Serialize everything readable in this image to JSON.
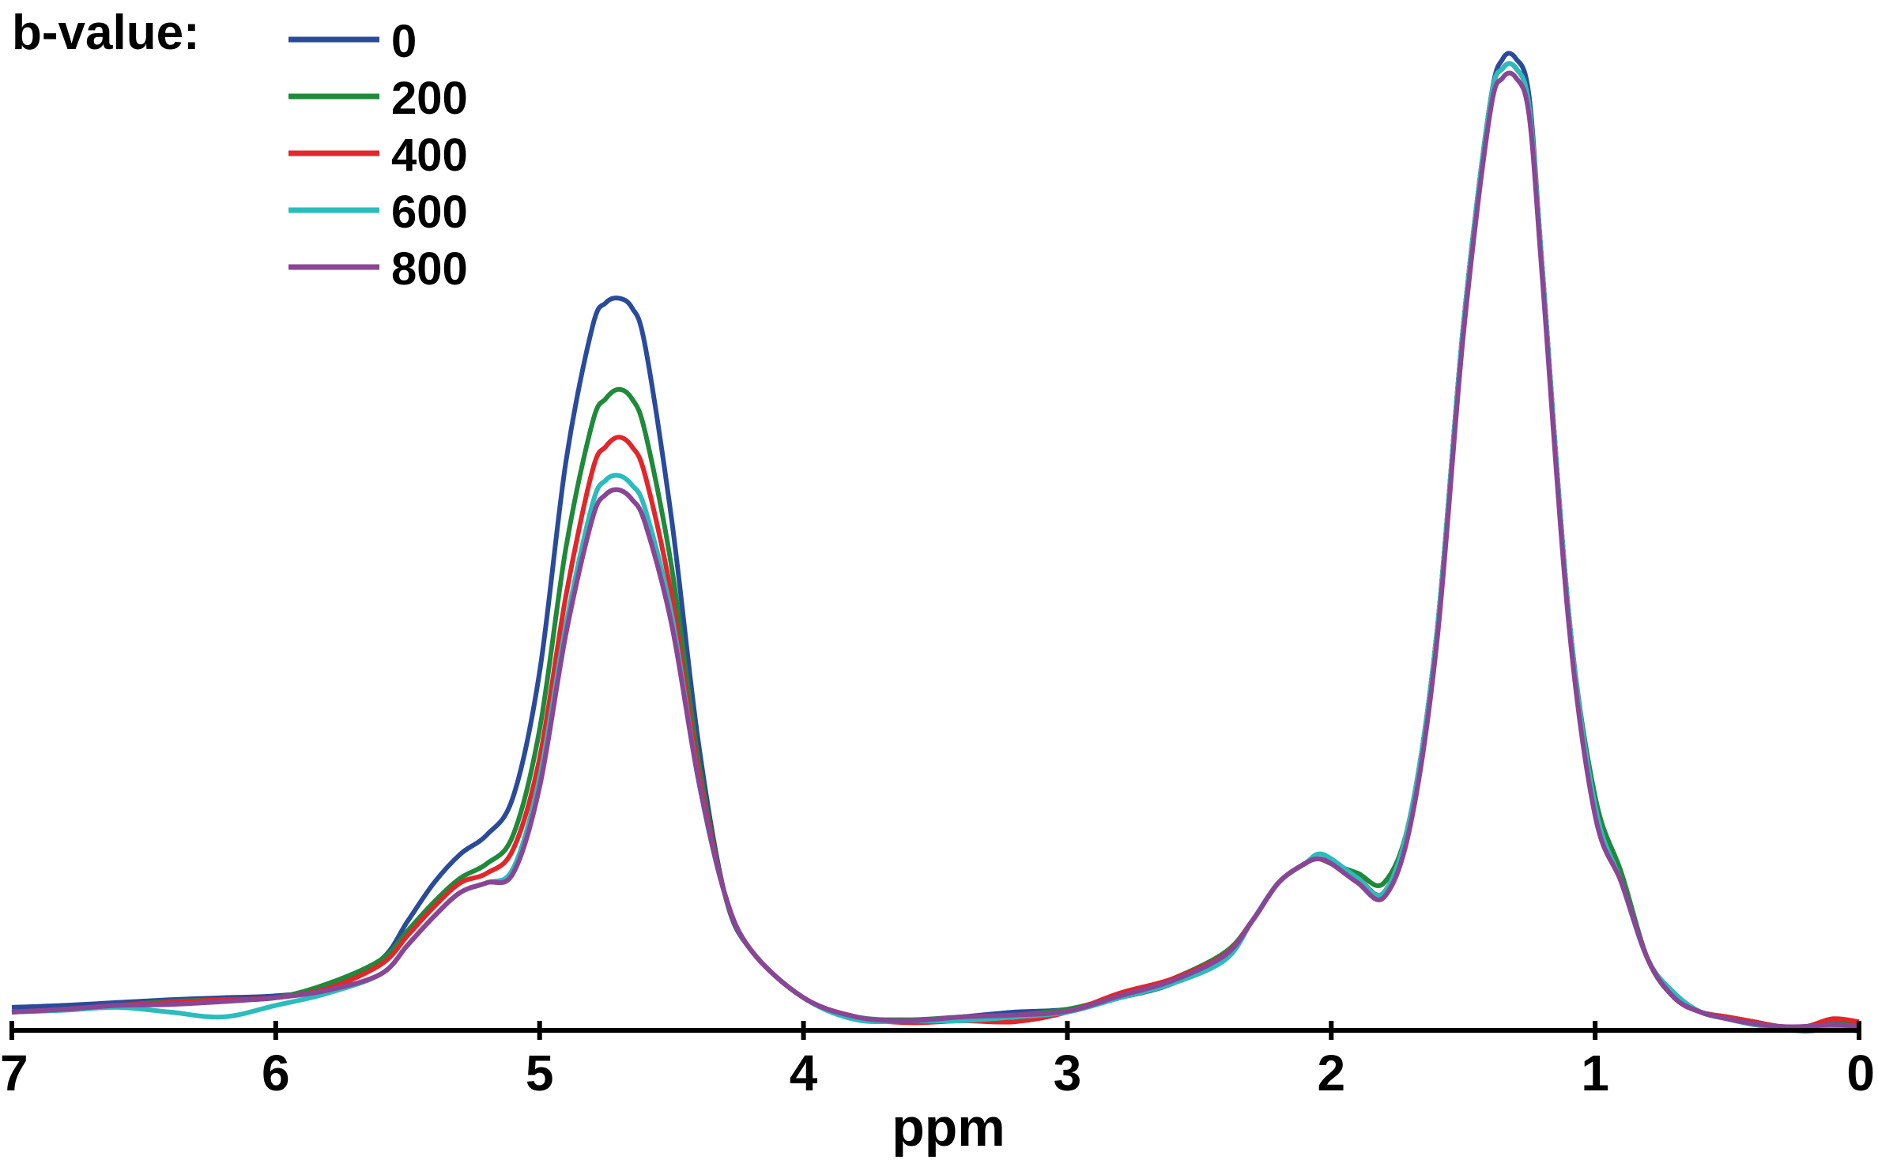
{
  "chart_data": {
    "type": "line",
    "xlabel": "ppm",
    "ylabel": "",
    "xlim": [
      7,
      0
    ],
    "x_reversed": true,
    "xticks": [
      "7",
      "6",
      "5",
      "4",
      "3",
      "2",
      "1",
      "0"
    ],
    "legend": {
      "title": "b-value:",
      "position": "top-left",
      "entries": [
        "0",
        "200",
        "400",
        "600",
        "800"
      ]
    },
    "grid": false,
    "ylim": [
      0,
      1.02
    ],
    "x": [
      7.0,
      6.8,
      6.6,
      6.4,
      6.2,
      6.0,
      5.8,
      5.6,
      5.5,
      5.4,
      5.3,
      5.2,
      5.1,
      5.0,
      4.9,
      4.8,
      4.75,
      4.7,
      4.65,
      4.6,
      4.5,
      4.4,
      4.3,
      4.2,
      4.0,
      3.8,
      3.6,
      3.4,
      3.2,
      3.0,
      2.8,
      2.6,
      2.4,
      2.3,
      2.2,
      2.1,
      2.05,
      2.0,
      1.9,
      1.8,
      1.7,
      1.6,
      1.5,
      1.4,
      1.35,
      1.3,
      1.25,
      1.2,
      1.1,
      1.0,
      0.9,
      0.8,
      0.7,
      0.6,
      0.5,
      0.4,
      0.3,
      0.2,
      0.1,
      0.0
    ],
    "series": [
      {
        "name": "0",
        "color": "#2a4b9b",
        "values": [
          0.01,
          0.012,
          0.015,
          0.018,
          0.02,
          0.022,
          0.03,
          0.06,
          0.1,
          0.14,
          0.17,
          0.19,
          0.23,
          0.36,
          0.58,
          0.72,
          0.745,
          0.75,
          0.74,
          0.7,
          0.52,
          0.29,
          0.13,
          0.07,
          0.02,
          0.0,
          -0.005,
          0.0,
          0.005,
          0.008,
          0.02,
          0.035,
          0.065,
          0.1,
          0.14,
          0.16,
          0.165,
          0.16,
          0.145,
          0.13,
          0.21,
          0.4,
          0.72,
          0.95,
          1.0,
          1.0,
          0.96,
          0.78,
          0.42,
          0.22,
          0.14,
          0.06,
          0.02,
          0.005,
          0.0,
          -0.005,
          -0.01,
          -0.01,
          -0.005,
          -0.01
        ]
      },
      {
        "name": "200",
        "color": "#1f8a3a",
        "values": [
          0.005,
          0.008,
          0.012,
          0.016,
          0.018,
          0.02,
          0.035,
          0.06,
          0.09,
          0.12,
          0.145,
          0.16,
          0.19,
          0.3,
          0.49,
          0.62,
          0.645,
          0.655,
          0.645,
          0.61,
          0.47,
          0.27,
          0.13,
          0.07,
          0.02,
          0.0,
          -0.003,
          0.0,
          0.002,
          0.008,
          0.022,
          0.04,
          0.068,
          0.1,
          0.14,
          0.16,
          0.165,
          0.16,
          0.15,
          0.14,
          0.21,
          0.4,
          0.72,
          0.95,
          0.99,
          0.99,
          0.95,
          0.78,
          0.42,
          0.23,
          0.15,
          0.06,
          0.02,
          0.005,
          0.0,
          -0.005,
          -0.01,
          -0.012,
          -0.005,
          -0.01
        ]
      },
      {
        "name": "400",
        "color": "#e3262a",
        "values": [
          0.005,
          0.008,
          0.012,
          0.015,
          0.018,
          0.02,
          0.03,
          0.055,
          0.085,
          0.115,
          0.14,
          0.15,
          0.175,
          0.27,
          0.44,
          0.57,
          0.595,
          0.605,
          0.595,
          0.565,
          0.44,
          0.26,
          0.13,
          0.07,
          0.02,
          0.0,
          -0.006,
          -0.004,
          -0.005,
          0.005,
          0.025,
          0.04,
          0.066,
          0.1,
          0.14,
          0.16,
          0.165,
          0.16,
          0.145,
          0.13,
          0.21,
          0.4,
          0.72,
          0.95,
          0.99,
          0.99,
          0.95,
          0.78,
          0.42,
          0.22,
          0.14,
          0.06,
          0.02,
          0.005,
          0.0,
          -0.005,
          -0.01,
          -0.01,
          -0.002,
          -0.005
        ]
      },
      {
        "name": "600",
        "color": "#2bbcbc",
        "values": [
          0.005,
          0.007,
          0.01,
          0.005,
          0.0,
          0.012,
          0.025,
          0.045,
          0.075,
          0.105,
          0.13,
          0.14,
          0.155,
          0.25,
          0.41,
          0.535,
          0.56,
          0.565,
          0.555,
          0.53,
          0.42,
          0.25,
          0.13,
          0.07,
          0.02,
          -0.003,
          -0.004,
          -0.004,
          0.0,
          0.005,
          0.02,
          0.035,
          0.06,
          0.1,
          0.14,
          0.16,
          0.17,
          0.165,
          0.145,
          0.13,
          0.21,
          0.4,
          0.72,
          0.95,
          0.99,
          0.99,
          0.95,
          0.78,
          0.42,
          0.22,
          0.14,
          0.06,
          0.025,
          0.005,
          -0.002,
          -0.008,
          -0.012,
          -0.015,
          -0.012,
          -0.015
        ]
      },
      {
        "name": "800",
        "color": "#8a4596",
        "values": [
          0.005,
          0.008,
          0.012,
          0.013,
          0.016,
          0.02,
          0.028,
          0.045,
          0.075,
          0.105,
          0.13,
          0.14,
          0.15,
          0.24,
          0.4,
          0.52,
          0.545,
          0.55,
          0.54,
          0.515,
          0.41,
          0.25,
          0.13,
          0.07,
          0.02,
          0.0,
          -0.004,
          0.0,
          0.002,
          0.006,
          0.022,
          0.038,
          0.065,
          0.1,
          0.14,
          0.16,
          0.165,
          0.16,
          0.14,
          0.125,
          0.2,
          0.39,
          0.71,
          0.94,
          0.98,
          0.98,
          0.94,
          0.77,
          0.41,
          0.21,
          0.14,
          0.06,
          0.02,
          0.005,
          -0.002,
          -0.007,
          -0.01,
          -0.01,
          -0.008,
          -0.01
        ]
      }
    ]
  }
}
